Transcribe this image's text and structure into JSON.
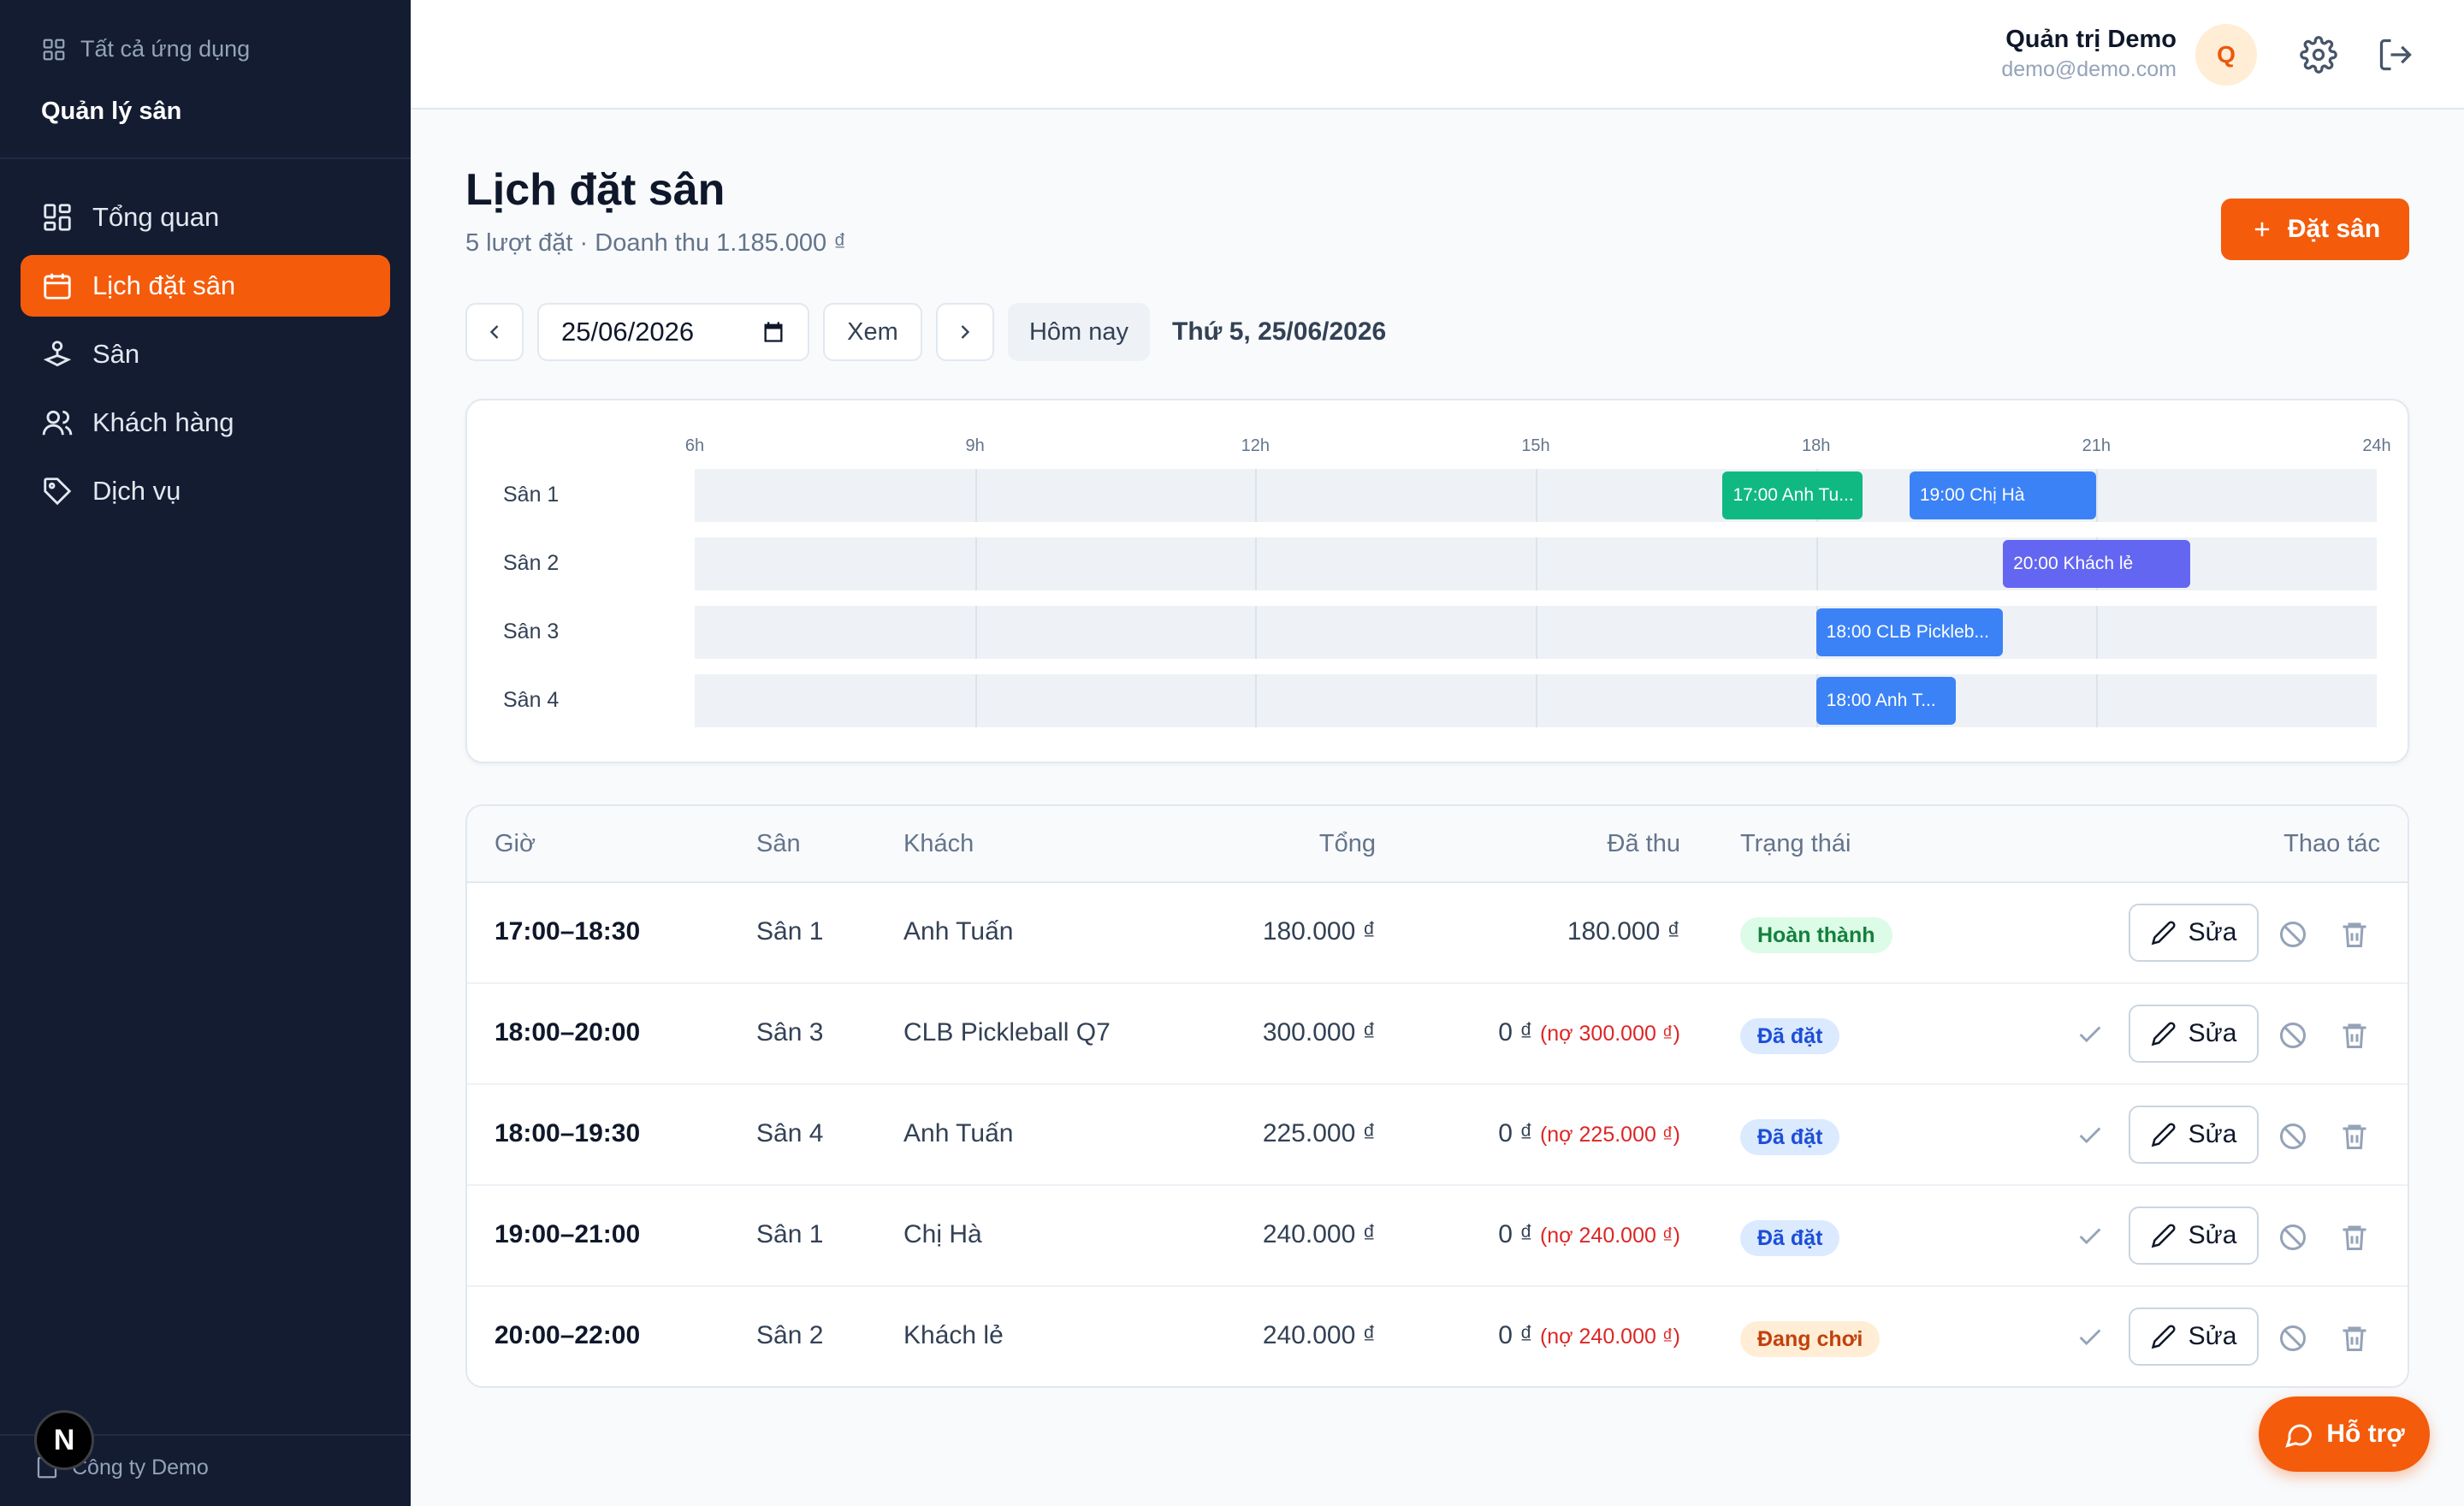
{
  "sidebar": {
    "all_apps": "Tất cả ứng dụng",
    "brand": "Quản lý sân",
    "items": [
      {
        "label": "Tổng quan",
        "icon": "dashboard-icon"
      },
      {
        "label": "Lịch đặt sân",
        "icon": "calendar-icon",
        "active": true
      },
      {
        "label": "Sân",
        "icon": "court-icon"
      },
      {
        "label": "Khách hàng",
        "icon": "users-icon"
      },
      {
        "label": "Dịch vụ",
        "icon": "tag-icon"
      }
    ],
    "company": "Công ty Demo",
    "dev_badge": "N"
  },
  "header": {
    "user_name": "Quản trị Demo",
    "user_email": "demo@demo.com",
    "avatar_letter": "Q"
  },
  "page": {
    "title": "Lịch đặt sân",
    "subtitle": "5 lượt đặt · Doanh thu 1.185.000 ₫",
    "book_button": "Đặt sân"
  },
  "toolbar": {
    "date_value": "25/06/2026",
    "view_button": "Xem",
    "today_button": "Hôm nay",
    "date_label": "Thứ 5, 25/06/2026"
  },
  "timeline": {
    "hours": [
      "6h",
      "9h",
      "12h",
      "15h",
      "18h",
      "21h",
      "24h"
    ],
    "courts": [
      "Sân 1",
      "Sân 2",
      "Sân 3",
      "Sân 4"
    ],
    "bookings": [
      {
        "court": 0,
        "start": 17.0,
        "end": 18.5,
        "label": "17:00 Anh Tu...",
        "color": "#10b981"
      },
      {
        "court": 0,
        "start": 19.0,
        "end": 21.0,
        "label": "19:00 Chị Hà",
        "color": "#3b82f6"
      },
      {
        "court": 1,
        "start": 20.0,
        "end": 22.0,
        "label": "20:00 Khách lẻ",
        "color": "#6366f1"
      },
      {
        "court": 2,
        "start": 18.0,
        "end": 20.0,
        "label": "18:00 CLB Pickleb...",
        "color": "#3b82f6"
      },
      {
        "court": 3,
        "start": 18.0,
        "end": 19.5,
        "label": "18:00 Anh T...",
        "color": "#3b82f6"
      }
    ]
  },
  "table": {
    "headers": [
      "Giờ",
      "Sân",
      "Khách",
      "Tổng",
      "Đã thu",
      "Trạng thái",
      "Thao tác"
    ],
    "edit_label": "Sửa",
    "rows": [
      {
        "time": "17:00–18:30",
        "court": "Sân 1",
        "customer": "Anh Tuấn",
        "total": "180.000 ₫",
        "paid": "180.000 ₫",
        "debt": "",
        "status": "Hoàn thành",
        "status_type": "done",
        "show_check": false
      },
      {
        "time": "18:00–20:00",
        "court": "Sân 3",
        "customer": "CLB Pickleball Q7",
        "total": "300.000 ₫",
        "paid": "0 ₫",
        "debt": "(nợ 300.000 ₫)",
        "status": "Đã đặt",
        "status_type": "booked",
        "show_check": true
      },
      {
        "time": "18:00–19:30",
        "court": "Sân 4",
        "customer": "Anh Tuấn",
        "total": "225.000 ₫",
        "paid": "0 ₫",
        "debt": "(nợ 225.000 ₫)",
        "status": "Đã đặt",
        "status_type": "booked",
        "show_check": true
      },
      {
        "time": "19:00–21:00",
        "court": "Sân 1",
        "customer": "Chị Hà",
        "total": "240.000 ₫",
        "paid": "0 ₫",
        "debt": "(nợ 240.000 ₫)",
        "status": "Đã đặt",
        "status_type": "booked",
        "show_check": true
      },
      {
        "time": "20:00–22:00",
        "court": "Sân 2",
        "customer": "Khách lẻ",
        "total": "240.000 ₫",
        "paid": "0 ₫",
        "debt": "(nợ 240.000 ₫)",
        "status": "Đang chơi",
        "status_type": "playing",
        "show_check": true
      }
    ]
  },
  "support_button": "Hỗ trợ",
  "colors": {
    "accent": "#f45b0b",
    "sidebar_bg": "#131c31"
  }
}
